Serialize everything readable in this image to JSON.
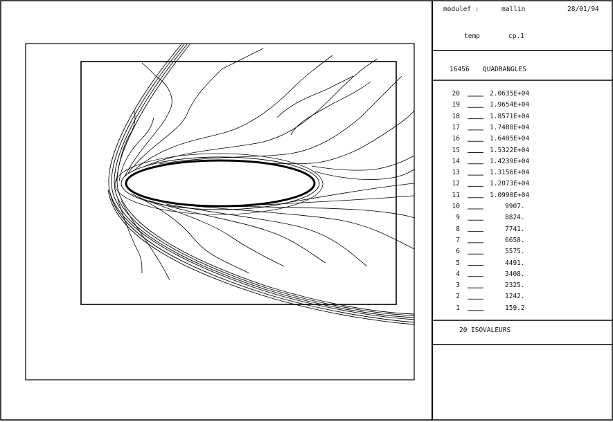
{
  "header": {
    "program": "modulef :",
    "user": "mallin",
    "date": "28/01/94"
  },
  "variable": {
    "name": "temp",
    "file": "cp.1"
  },
  "mesh": {
    "count": "16456",
    "type": "QUADRANGLES"
  },
  "legend": [
    {
      "index": "20",
      "value": "2.0635E+04"
    },
    {
      "index": "19",
      "value": "1.9654E+04"
    },
    {
      "index": "18",
      "value": "1.8571E+04"
    },
    {
      "index": "17",
      "value": "1.7488E+04"
    },
    {
      "index": "16",
      "value": "1.6405E+04"
    },
    {
      "index": "15",
      "value": "1.5322E+04"
    },
    {
      "index": "14",
      "value": "1.4239E+04"
    },
    {
      "index": "13",
      "value": "1.3156E+04"
    },
    {
      "index": "12",
      "value": "1.2073E+04"
    },
    {
      "index": "11",
      "value": "1.0990E+04"
    },
    {
      "index": "10",
      "value": "9907."
    },
    {
      "index": "9",
      "value": "8824."
    },
    {
      "index": "8",
      "value": "7741."
    },
    {
      "index": "7",
      "value": "6658."
    },
    {
      "index": "6",
      "value": "5575."
    },
    {
      "index": "5",
      "value": "4491."
    },
    {
      "index": "4",
      "value": "3408."
    },
    {
      "index": "3",
      "value": "2325."
    },
    {
      "index": "2",
      "value": "1242."
    },
    {
      "index": "1",
      "value": "159.2"
    }
  ],
  "isovalues": {
    "count": "20",
    "label": "ISOVALEURS"
  }
}
